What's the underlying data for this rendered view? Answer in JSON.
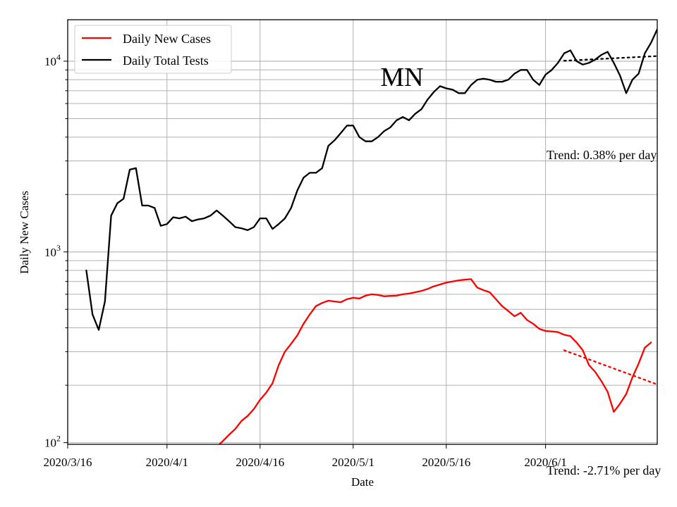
{
  "chart_data": {
    "type": "line",
    "title": "",
    "state_label": "MN",
    "xlabel": "Date",
    "ylabel": "Daily New Cases",
    "y_scale": "log",
    "ylim": [
      98,
      16500
    ],
    "xlim": [
      "2020-03-16",
      "2020-06-19"
    ],
    "grid": true,
    "legend_position": "top-left",
    "x_ticks": [
      {
        "date": "2020-03-16",
        "label": "2020/3/16"
      },
      {
        "date": "2020-04-01",
        "label": "2020/4/1"
      },
      {
        "date": "2020-04-16",
        "label": "2020/4/16"
      },
      {
        "date": "2020-05-01",
        "label": "2020/5/1"
      },
      {
        "date": "2020-05-16",
        "label": "2020/5/16"
      },
      {
        "date": "2020-06-01",
        "label": "2020/6/1"
      }
    ],
    "y_ticks": [
      {
        "value": 100,
        "base": "10",
        "exp": "2"
      },
      {
        "value": 1000,
        "base": "10",
        "exp": "3"
      },
      {
        "value": 10000,
        "base": "10",
        "exp": "4"
      }
    ],
    "series": [
      {
        "name": "Daily New Cases",
        "color": "#ff0000",
        "start_date": "2020-04-09",
        "values": [
          95,
          102,
          110,
          118,
          130,
          138,
          150,
          168,
          183,
          205,
          255,
          300,
          330,
          365,
          420,
          470,
          520,
          540,
          555,
          550,
          545,
          565,
          575,
          570,
          590,
          600,
          595,
          585,
          588,
          590,
          600,
          605,
          615,
          625,
          640,
          660,
          675,
          690,
          700,
          710,
          715,
          720,
          650,
          630,
          615,
          565,
          520,
          490,
          460,
          480,
          440,
          420,
          395,
          385,
          383,
          380,
          368,
          362,
          335,
          305,
          255,
          235,
          210,
          185,
          145,
          160,
          180,
          220,
          260,
          315,
          335
        ]
      },
      {
        "name": "Daily Total Tests",
        "color": "#000000",
        "start_date": "2020-03-19",
        "values": [
          800,
          470,
          390,
          550,
          1550,
          1800,
          1900,
          2700,
          2750,
          1750,
          1750,
          1700,
          1370,
          1400,
          1520,
          1500,
          1530,
          1450,
          1480,
          1500,
          1550,
          1650,
          1550,
          1450,
          1350,
          1330,
          1300,
          1350,
          1500,
          1500,
          1320,
          1400,
          1500,
          1700,
          2100,
          2450,
          2600,
          2600,
          2750,
          3600,
          3850,
          4200,
          4600,
          4600,
          4000,
          3800,
          3800,
          4000,
          4300,
          4500,
          4900,
          5100,
          4900,
          5300,
          5600,
          6300,
          6900,
          7400,
          7200,
          7100,
          6800,
          6800,
          7500,
          8000,
          8100,
          8000,
          7800,
          7800,
          8000,
          8600,
          9000,
          9000,
          8000,
          7500,
          8500,
          9000,
          9800,
          11000,
          11400,
          10000,
          9600,
          9800,
          10200,
          10800,
          11200,
          9800,
          8400,
          6800,
          8000,
          8600,
          11000,
          12500,
          14700
        ]
      }
    ],
    "trends": [
      {
        "series": "Daily Total Tests",
        "label": "Trend: 0.38% per day",
        "start_date": "2020-06-04",
        "start_value": 10050,
        "end_date": "2020-06-19",
        "end_value": 10640,
        "color": "#000000"
      },
      {
        "series": "Daily New Cases",
        "label": "Trend: -2.71% per day",
        "start_date": "2020-06-04",
        "start_value": 305,
        "end_date": "2020-06-19",
        "end_value": 202,
        "color": "#ff0000"
      }
    ]
  }
}
